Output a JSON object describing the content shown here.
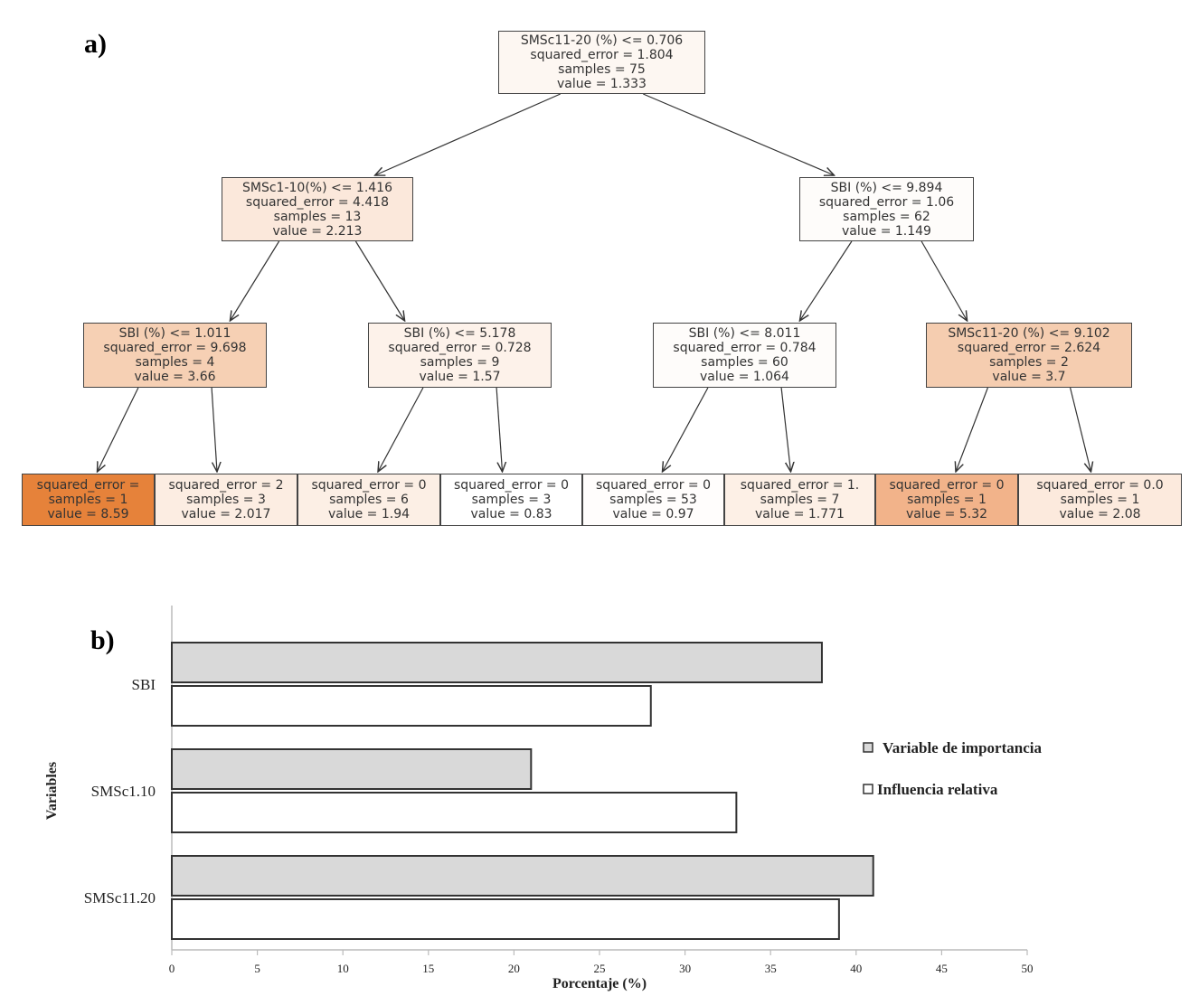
{
  "panel_a_label": "a)",
  "panel_b_label": "b)",
  "tree": {
    "nodes": [
      {
        "lines": [
          "SMSc11-20 (%) <= 0.706",
          "squared_error = 1.804",
          "samples = 75",
          "value = 1.333"
        ],
        "fill": "#fdf7f2"
      },
      {
        "lines": [
          "SMSc1-10(%) <= 1.416",
          "squared_error = 4.418",
          "samples = 13",
          "value = 2.213"
        ],
        "fill": "#fbe8db"
      },
      {
        "lines": [
          "SBI (%) <= 9.894",
          "squared_error = 1.06",
          "samples = 62",
          "value = 1.149"
        ],
        "fill": "#fefcfa"
      },
      {
        "lines": [
          "SBI (%) <= 1.011",
          "squared_error = 9.698",
          "samples = 4",
          "value = 3.66"
        ],
        "fill": "#f6d0b4"
      },
      {
        "lines": [
          "SBI (%) <= 5.178",
          "squared_error = 0.728",
          "samples = 9",
          "value = 1.57"
        ],
        "fill": "#fdf2ea"
      },
      {
        "lines": [
          "SBI (%) <= 8.011",
          "squared_error = 0.784",
          "samples = 60",
          "value = 1.064"
        ],
        "fill": "#fefcfa"
      },
      {
        "lines": [
          "SMSc11-20 (%) <= 9.102",
          "squared_error = 2.624",
          "samples = 2",
          "value = 3.7"
        ],
        "fill": "#f5cdb0"
      },
      {
        "lines": [
          "squared_error =",
          "samples = 1",
          "value = 8.59"
        ],
        "fill": "#e6823a"
      },
      {
        "lines": [
          "squared_error = 2",
          "samples = 3",
          "value = 2.017"
        ],
        "fill": "#fcede2"
      },
      {
        "lines": [
          "squared_error = 0",
          "samples = 6",
          "value = 1.94"
        ],
        "fill": "#fcefe5"
      },
      {
        "lines": [
          "squared_error = 0",
          "samples = 3",
          "value = 0.83"
        ],
        "fill": "#ffffff"
      },
      {
        "lines": [
          "squared_error = 0",
          "samples = 53",
          "value = 0.97"
        ],
        "fill": "#fffdfc"
      },
      {
        "lines": [
          "squared_error = 1.",
          "samples = 7",
          "value = 1.771"
        ],
        "fill": "#fdf0e6"
      },
      {
        "lines": [
          "squared_error = 0",
          "samples = 1",
          "value = 5.32"
        ],
        "fill": "#f2b38a"
      },
      {
        "lines": [
          "squared_error = 0.0",
          "samples = 1",
          "value = 2.08"
        ],
        "fill": "#fceadd"
      }
    ],
    "edges": [
      [
        0,
        1
      ],
      [
        0,
        2
      ],
      [
        1,
        3
      ],
      [
        1,
        4
      ],
      [
        2,
        5
      ],
      [
        2,
        6
      ],
      [
        3,
        7
      ],
      [
        3,
        8
      ],
      [
        4,
        9
      ],
      [
        4,
        10
      ],
      [
        5,
        11
      ],
      [
        5,
        12
      ],
      [
        6,
        13
      ],
      [
        6,
        14
      ]
    ]
  },
  "chart_data": {
    "type": "bar",
    "orientation": "horizontal",
    "categories": [
      "SBI",
      "SMSc1.10",
      "SMSc11.20"
    ],
    "series": [
      {
        "name": "Variable de importancia",
        "values": [
          38,
          21,
          41
        ],
        "color": "#d9d9d9"
      },
      {
        "name": "Influencia relativa",
        "values": [
          28,
          33,
          39
        ],
        "color": "#ffffff"
      }
    ],
    "xlabel": "Porcentaje (%)",
    "ylabel": "Variables",
    "xlim": [
      0,
      50
    ],
    "xticks": [
      "0",
      "5",
      "10",
      "15",
      "20",
      "25",
      "30",
      "35",
      "40",
      "45",
      "50"
    ],
    "grid": false,
    "legend_position": "right"
  }
}
